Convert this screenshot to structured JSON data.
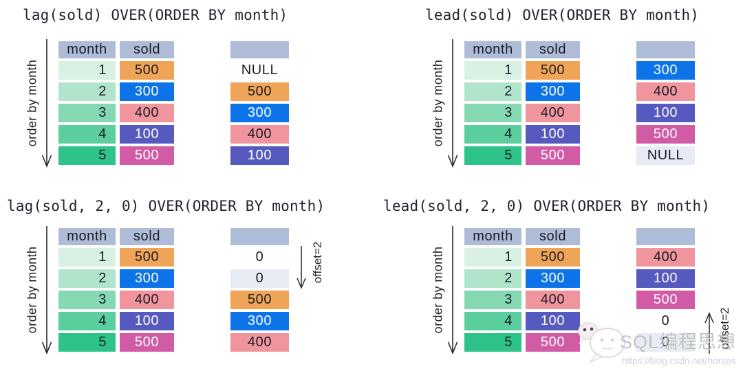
{
  "palette": {
    "header": "#afbcd7",
    "green1": "#d8f1e3",
    "green2": "#b0e5cb",
    "green3": "#84d9b3",
    "green4": "#5bce9d",
    "green5": "#2ec389",
    "orange": "#f0a458",
    "blue": "#0d73e8",
    "salmon": "#f0959d",
    "indigo": "#5659bd",
    "magenta": "#d25ba6",
    "stripe": "#e7ebf3",
    "none": "transparent",
    "text_dark": "#1b1b26",
    "text_light": "#ffffff",
    "arrow": "#2a2a33"
  },
  "order_label": "order by month",
  "table": {
    "columns": [
      "month",
      "sold"
    ],
    "rows": [
      {
        "month": "1",
        "month_bg": "green1",
        "sold": "500",
        "sold_bg": "orange",
        "sold_tone": "dark"
      },
      {
        "month": "2",
        "month_bg": "green2",
        "sold": "300",
        "sold_bg": "blue",
        "sold_tone": "light"
      },
      {
        "month": "3",
        "month_bg": "green3",
        "sold": "400",
        "sold_bg": "salmon",
        "sold_tone": "dark"
      },
      {
        "month": "4",
        "month_bg": "green4",
        "sold": "100",
        "sold_bg": "indigo",
        "sold_tone": "light"
      },
      {
        "month": "5",
        "month_bg": "green5",
        "sold": "500",
        "sold_bg": "magenta",
        "sold_tone": "light"
      }
    ]
  },
  "panels": [
    {
      "id": "lag-basic",
      "title": "lag(sold) OVER(ORDER BY month)",
      "results": [
        {
          "v": "NULL",
          "bg": "none",
          "tone": "dark"
        },
        {
          "v": "500",
          "bg": "orange",
          "tone": "dark"
        },
        {
          "v": "300",
          "bg": "blue",
          "tone": "light"
        },
        {
          "v": "400",
          "bg": "salmon",
          "tone": "dark"
        },
        {
          "v": "100",
          "bg": "indigo",
          "tone": "light"
        }
      ],
      "offset_note": null
    },
    {
      "id": "lead-basic",
      "title": "lead(sold) OVER(ORDER BY month)",
      "results": [
        {
          "v": "300",
          "bg": "blue",
          "tone": "light"
        },
        {
          "v": "400",
          "bg": "salmon",
          "tone": "dark"
        },
        {
          "v": "100",
          "bg": "indigo",
          "tone": "light"
        },
        {
          "v": "500",
          "bg": "magenta",
          "tone": "light"
        },
        {
          "v": "NULL",
          "bg": "stripe",
          "tone": "dark"
        }
      ],
      "offset_note": null
    },
    {
      "id": "lag-offset",
      "title": "lag(sold, 2, 0) OVER(ORDER BY month)",
      "results": [
        {
          "v": "0",
          "bg": "none",
          "tone": "dark"
        },
        {
          "v": "0",
          "bg": "stripe",
          "tone": "dark"
        },
        {
          "v": "500",
          "bg": "orange",
          "tone": "dark"
        },
        {
          "v": "300",
          "bg": "blue",
          "tone": "light"
        },
        {
          "v": "400",
          "bg": "salmon",
          "tone": "dark"
        }
      ],
      "offset_note": {
        "label": "offset=2",
        "direction": "down"
      }
    },
    {
      "id": "lead-offset",
      "title": "lead(sold, 2, 0) OVER(ORDER BY month)",
      "results": [
        {
          "v": "400",
          "bg": "salmon",
          "tone": "dark"
        },
        {
          "v": "100",
          "bg": "indigo",
          "tone": "light"
        },
        {
          "v": "500",
          "bg": "magenta",
          "tone": "light"
        },
        {
          "v": "0",
          "bg": "none",
          "tone": "dark"
        },
        {
          "v": "0",
          "bg": "stripe",
          "tone": "dark"
        }
      ],
      "offset_note": {
        "label": "offset=2",
        "direction": "up"
      }
    }
  ],
  "watermark": {
    "icon": "wechat-icon",
    "brand": "SQL编程思想",
    "url": "https://blog.csdn.net/horses"
  }
}
